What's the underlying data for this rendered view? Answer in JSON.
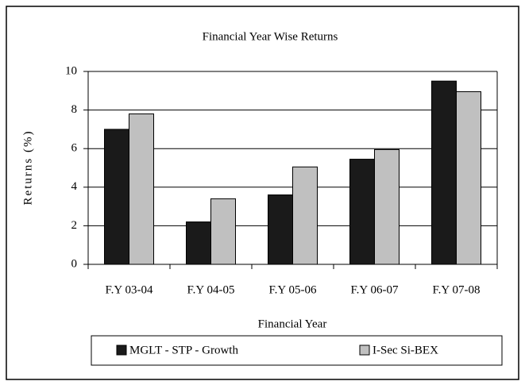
{
  "chart_data": {
    "type": "bar",
    "title": "Financial Year Wise Returns",
    "x_label": "Financial Year",
    "y_label": "Returns (%)",
    "categories": [
      "F.Y 03-04",
      "F.Y 04-05",
      "F.Y 05-06",
      "F.Y 06-07",
      "F.Y 07-08"
    ],
    "series": [
      {
        "name": "MGLT - STP - Growth",
        "color": "#1a1a1a",
        "values": [
          7.0,
          2.2,
          3.6,
          5.45,
          9.5
        ]
      },
      {
        "name": "I-Sec Si-BEX",
        "color": "#c0c0c0",
        "values": [
          7.8,
          3.4,
          5.05,
          5.95,
          8.95
        ]
      }
    ],
    "ylim": [
      0,
      10
    ],
    "yticks": [
      0,
      2,
      4,
      6,
      8,
      10
    ],
    "grid": true,
    "legend": "bottom"
  }
}
